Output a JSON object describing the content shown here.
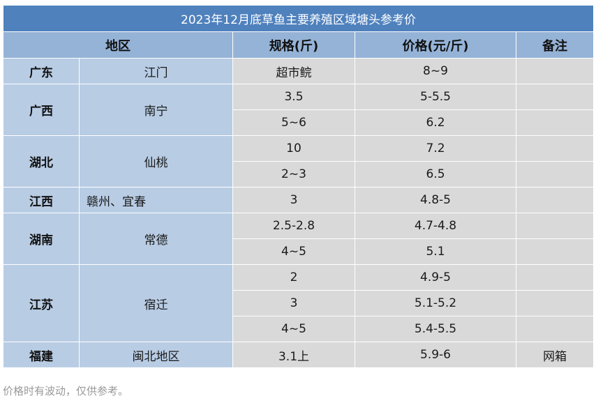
{
  "title": "2023年12月底草鱼主要养殖区域塘头参考价",
  "headers": {
    "region": "地区",
    "spec": "规格(斤)",
    "price": "价格(元/斤)",
    "remark": "备注"
  },
  "rows": {
    "guangdong": {
      "province": "广东",
      "city": "江门",
      "entries": [
        {
          "spec": "超市鲩",
          "price": "8~9",
          "remark": ""
        }
      ]
    },
    "guangxi": {
      "province": "广西",
      "city": "南宁",
      "entries": [
        {
          "spec": "3.5",
          "price": "5-5.5",
          "remark": ""
        },
        {
          "spec": "5~6",
          "price": "6.2",
          "remark": ""
        }
      ]
    },
    "hubei": {
      "province": "湖北",
      "city": "仙桃",
      "entries": [
        {
          "spec": "10",
          "price": "7.2",
          "remark": ""
        },
        {
          "spec": "2~3",
          "price": "6.5",
          "remark": ""
        }
      ]
    },
    "jiangxi": {
      "province": "江西",
      "city": "赣州、宜春",
      "entries": [
        {
          "spec": "3",
          "price": "4.8-5",
          "remark": ""
        }
      ]
    },
    "hunan": {
      "province": "湖南",
      "city": "常德",
      "entries": [
        {
          "spec": "2.5-2.8",
          "price": "4.7-4.8",
          "remark": ""
        },
        {
          "spec": "4~5",
          "price": "5.1",
          "remark": ""
        }
      ]
    },
    "jiangsu": {
      "province": "江苏",
      "city": "宿迁",
      "entries": [
        {
          "spec": "2",
          "price": "4.9-5",
          "remark": ""
        },
        {
          "spec": "3",
          "price": "5.1-5.2",
          "remark": ""
        },
        {
          "spec": "4~5",
          "price": "5.4-5.5",
          "remark": ""
        }
      ]
    },
    "fujian": {
      "province": "福建",
      "city": "闽北地区",
      "entries": [
        {
          "spec": "3.1上",
          "price": "5.9-6",
          "remark": "网箱"
        }
      ]
    }
  },
  "footnote": "价格时有波动，仅供参考。",
  "colors": {
    "title_bg": "#4f81bd",
    "header_bg": "#95b3d7",
    "region_bg": "#b8cce4",
    "value_bg": "#d9d9d9"
  }
}
